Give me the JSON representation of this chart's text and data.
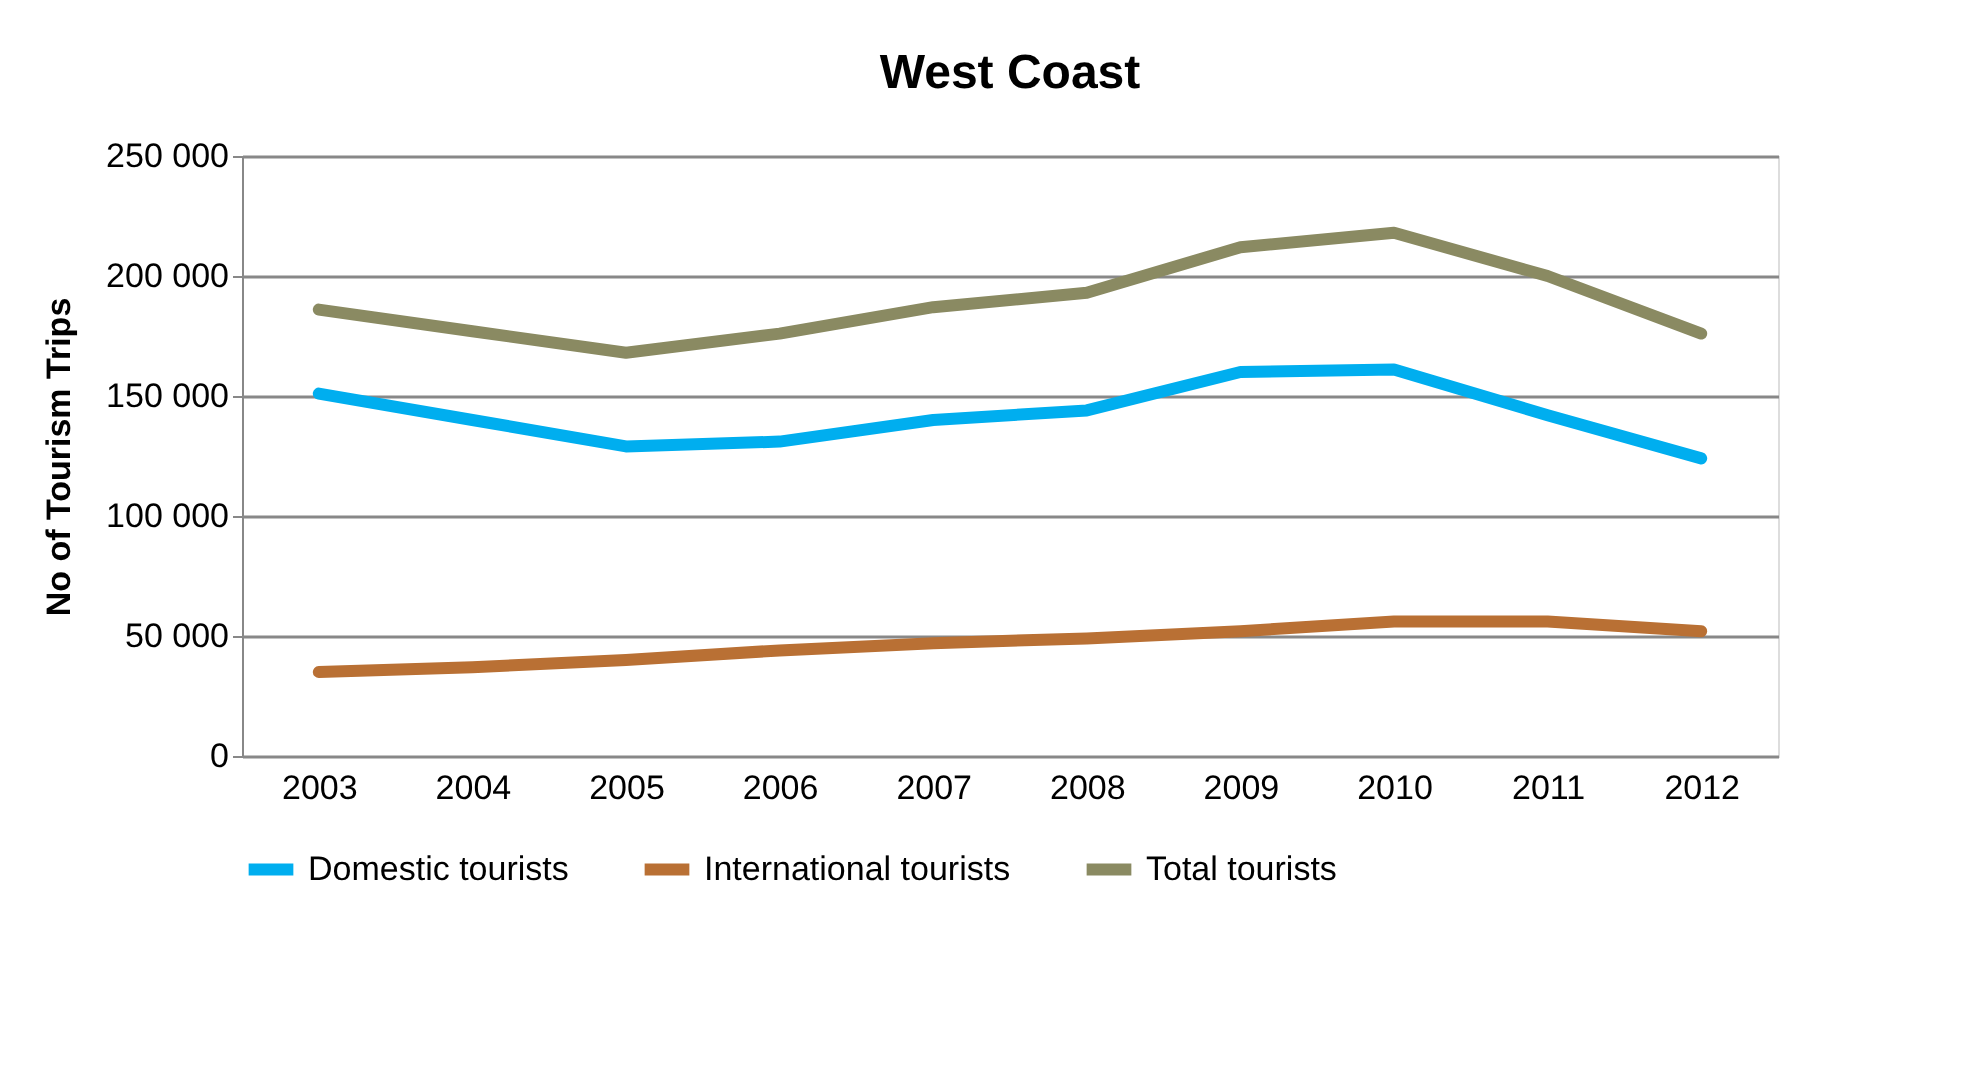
{
  "chart_data": {
    "type": "line",
    "title": "West Coast",
    "ylabel": "No of Tourism Trips",
    "categories": [
      "2003",
      "2004",
      "2005",
      "2006",
      "2007",
      "2008",
      "2009",
      "2010",
      "2011",
      "2012"
    ],
    "series": [
      {
        "name": "Domestic tourists",
        "color": "#00aeef",
        "values": [
          151000,
          140000,
          129000,
          131000,
          140000,
          144000,
          160000,
          161000,
          142000,
          124000
        ]
      },
      {
        "name": "International tourists",
        "color": "#b97034",
        "values": [
          35000,
          37000,
          40000,
          44000,
          47000,
          49000,
          52000,
          56000,
          56000,
          52000
        ]
      },
      {
        "name": "Total tourists",
        "color": "#8a8a62",
        "values": [
          186000,
          177000,
          168000,
          176000,
          187000,
          193000,
          212000,
          218000,
          200000,
          176000
        ]
      }
    ],
    "ylim": [
      0,
      250000
    ],
    "yticks": [
      {
        "value": 0,
        "label": "0"
      },
      {
        "value": 50000,
        "label": "50 000"
      },
      {
        "value": 100000,
        "label": "100 000"
      },
      {
        "value": 150000,
        "label": "150 000"
      },
      {
        "value": 200000,
        "label": "200 000"
      },
      {
        "value": 250000,
        "label": "250 000"
      }
    ],
    "grid": "y",
    "legend": "bottom",
    "marker": "none",
    "line_style": "solid"
  }
}
